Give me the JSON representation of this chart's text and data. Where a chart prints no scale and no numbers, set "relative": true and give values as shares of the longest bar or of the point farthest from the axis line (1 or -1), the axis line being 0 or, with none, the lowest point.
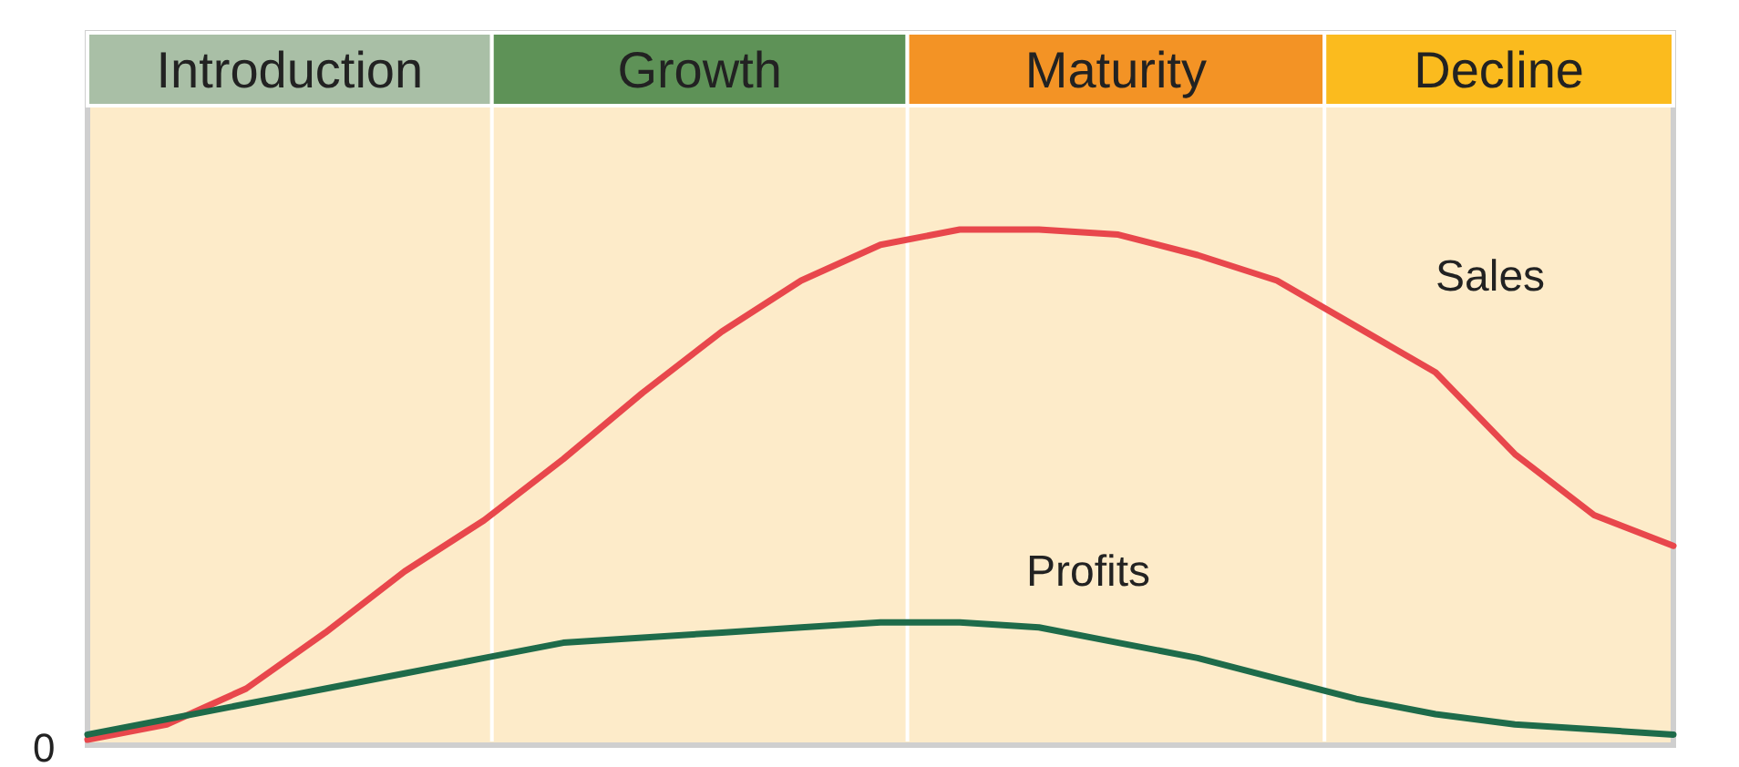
{
  "chart_data": {
    "type": "line",
    "relative": true,
    "categories": [
      null,
      null,
      null,
      null,
      null,
      null,
      null,
      null,
      null,
      null,
      null,
      null,
      null,
      null,
      null,
      null,
      null,
      null,
      null,
      null,
      null
    ],
    "series": [
      {
        "name": "Sales",
        "color": "#e8474c",
        "values": [
          0,
          0.03,
          0.1,
          0.21,
          0.33,
          0.43,
          0.55,
          0.68,
          0.8,
          0.9,
          0.97,
          1.0,
          1.0,
          0.99,
          0.95,
          0.9,
          0.81,
          0.72,
          0.56,
          0.44,
          0.38
        ]
      },
      {
        "name": "Profits",
        "color": "#1e6b4a",
        "values": [
          0.01,
          0.04,
          0.07,
          0.1,
          0.13,
          0.16,
          0.19,
          0.2,
          0.21,
          0.22,
          0.23,
          0.23,
          0.22,
          0.19,
          0.16,
          0.12,
          0.08,
          0.05,
          0.03,
          0.02,
          0.01
        ]
      }
    ],
    "annotations": [
      "Introduction",
      "Growth",
      "Maturity",
      "Decline",
      "0"
    ]
  }
}
